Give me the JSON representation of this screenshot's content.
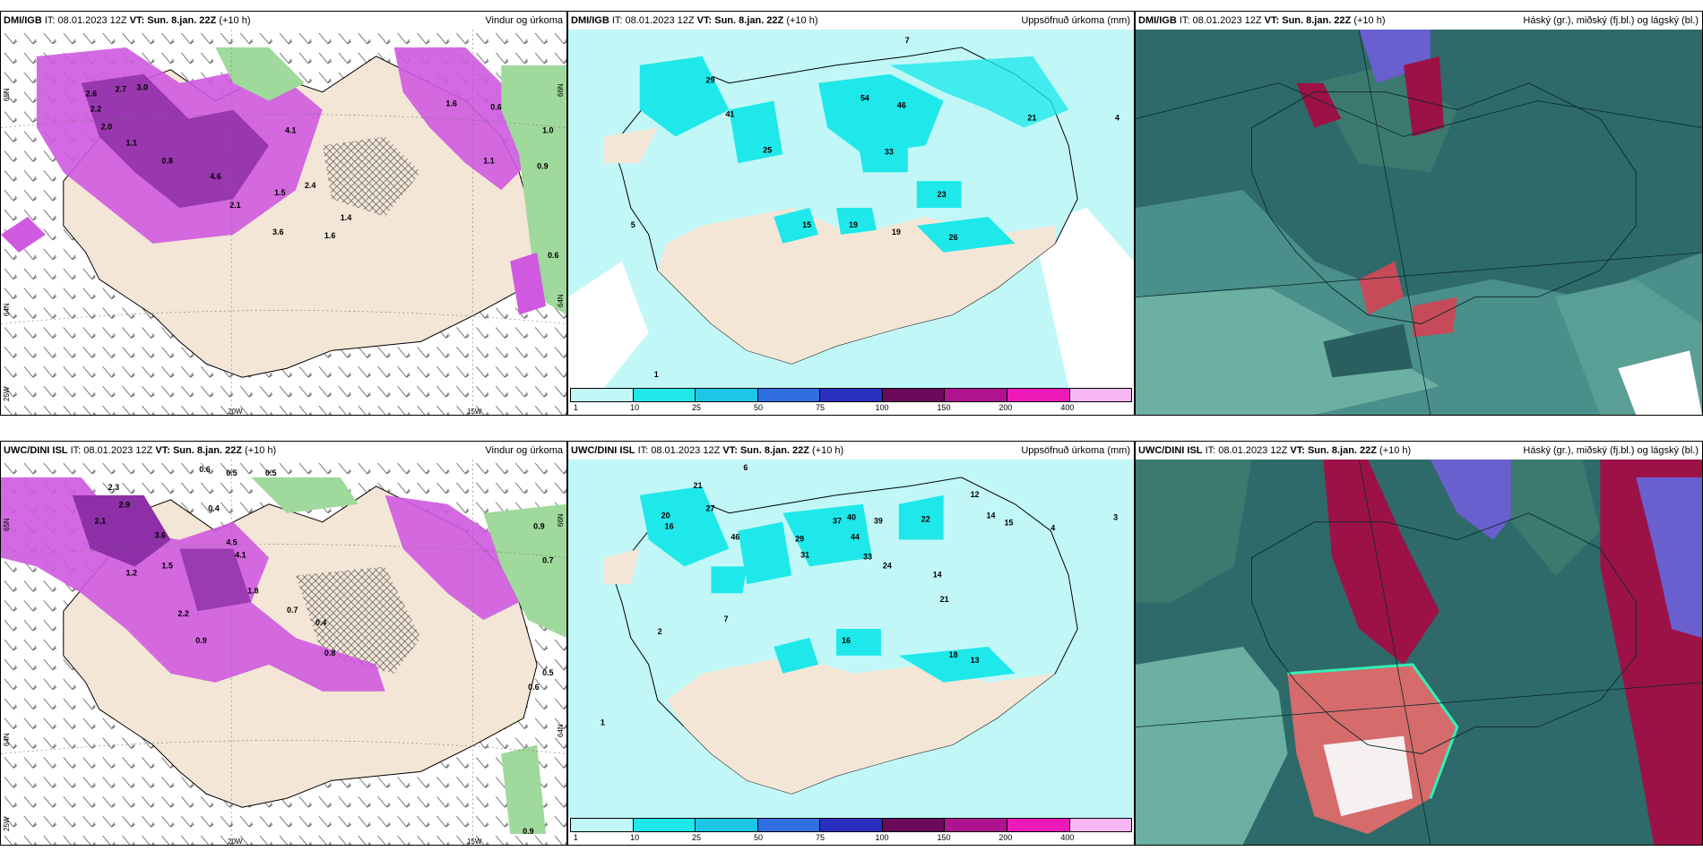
{
  "panels": [
    {
      "id": "p1",
      "model": "DMI/IGB",
      "it_label": "IT:",
      "it_value": "08.01.2023 12Z",
      "vt_label": "VT:",
      "vt_value": "Sun. 8.jan. 22Z",
      "lead": "(+10 h)",
      "title": "Vindur og úrkoma",
      "axis": {
        "lon_ticks": [
          "20W",
          "15W"
        ],
        "lat_ticks_left": [
          "65N",
          "64N"
        ],
        "lat_ticks_right": [
          "66N",
          "64N"
        ],
        "corner": "25W"
      },
      "labels": [
        "2.6",
        "2.2",
        "2.7",
        "3.0",
        "2.0",
        "1.1",
        "0.8",
        "4.1",
        "4.6",
        "1.5",
        "2.4",
        "2.1",
        "3.6",
        "1.6",
        "1.4",
        "0.6",
        "1.0",
        "0.9",
        "1.6",
        "0.6",
        "1.1"
      ]
    },
    {
      "id": "p2",
      "model": "DMI/IGB",
      "it_label": "IT:",
      "it_value": "08.01.2023 12Z",
      "vt_label": "VT:",
      "vt_value": "Sun. 8.jan. 22Z",
      "lead": "(+10 h)",
      "title": "Uppsöfnuð úrkoma (mm)",
      "labels": [
        "7",
        "29",
        "41",
        "25",
        "54",
        "46",
        "33",
        "21",
        "4",
        "23",
        "19",
        "15",
        "19",
        "26",
        "5",
        "1"
      ]
    },
    {
      "id": "p3",
      "model": "DMI/IGB",
      "it_label": "IT:",
      "it_value": "08.01.2023 12Z",
      "vt_label": "VT:",
      "vt_value": "Sun. 8.jan. 22Z",
      "lead": "(+10 h)",
      "title": "Háský (gr.), miðský (fj.bl.) og lágský (bl.)"
    },
    {
      "id": "p4",
      "model": "UWC/DINI ISL",
      "it_label": "IT:",
      "it_value": "08.01.2023 12Z",
      "vt_label": "VT:",
      "vt_value": "Sun. 8.jan. 22Z",
      "lead": "(+10 h)",
      "title": "Vindur og úrkoma",
      "axis": {
        "lon_ticks": [
          "20W",
          "15W"
        ],
        "lat_ticks_left": [
          "65N",
          "64N"
        ],
        "lat_ticks_right": [
          "66N",
          "64N"
        ],
        "corner": "25W"
      },
      "labels": [
        "0.6",
        "0.5",
        "0.5",
        "2.3",
        "2.9",
        "2.1",
        "3.6",
        "0.4",
        "4.5",
        "4.1",
        "1.5",
        "1.2",
        "2.2",
        "1.8",
        "0.9",
        "0.7",
        "0.4",
        "0.8",
        "0.9",
        "0.7",
        "0.5",
        "0.6",
        "0.9"
      ]
    },
    {
      "id": "p5",
      "model": "UWC/DINI ISL",
      "it_label": "IT:",
      "it_value": "08.01.2023 12Z",
      "vt_label": "VT:",
      "vt_value": "Sun. 8.jan. 22Z",
      "lead": "(+10 h)",
      "title": "Uppsöfnuð úrkoma (mm)",
      "labels": [
        "6",
        "21",
        "20",
        "27",
        "16",
        "46",
        "29",
        "31",
        "37",
        "40",
        "39",
        "44",
        "22",
        "12",
        "14",
        "15",
        "33",
        "24",
        "14",
        "21",
        "16",
        "18",
        "13",
        "7",
        "2",
        "1",
        "3",
        "4"
      ]
    },
    {
      "id": "p6",
      "model": "UWC/DINI ISL",
      "it_label": "IT:",
      "it_value": "08.01.2023 12Z",
      "vt_label": "VT:",
      "vt_value": "Sun. 8.jan. 22Z",
      "lead": "(+10 h)",
      "title": "Háský (gr.), miðský (fj.bl.) og lágský (bl.)"
    }
  ],
  "legend": {
    "ticks": [
      "1",
      "10",
      "25",
      "50",
      "75",
      "100",
      "150",
      "200",
      "400"
    ],
    "colors": [
      "#c2f7f7",
      "#1fe8ea",
      "#1cc6e4",
      "#2f6fe0",
      "#2a2fbf",
      "#6b0a5a",
      "#b0138f",
      "#ee1ab7",
      "#f6b6f3"
    ]
  },
  "colors": {
    "land": "#f3e6d6",
    "precip_light": "#c2f7f7",
    "precip_mid": "#1fe8ea",
    "precip_pink": "#cf5ae0",
    "precip_purple": "#8d2fa6",
    "green_high": "#9fd99b",
    "cloud_teal": "#2e6a6a",
    "cloud_red": "#9c1246"
  }
}
